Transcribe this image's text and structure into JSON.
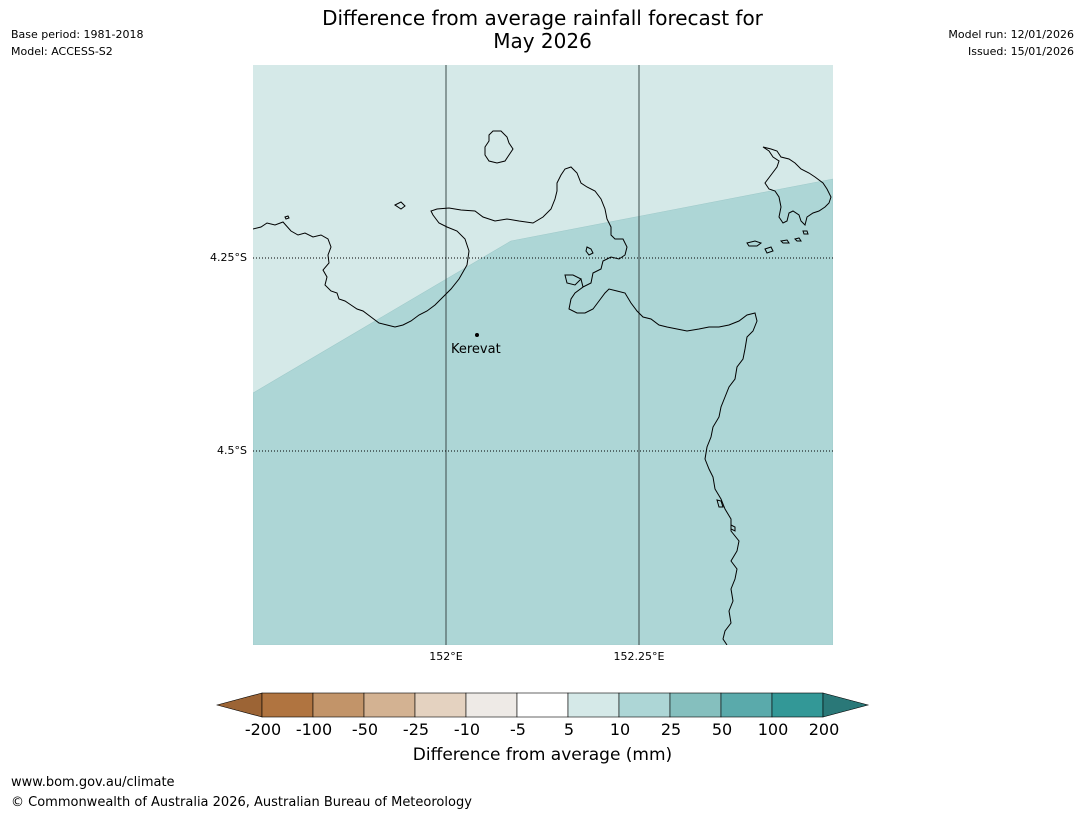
{
  "header": {
    "base_period": "Base period: 1981-2018",
    "model": "Model: ACCESS-S2",
    "model_run": "Model run: 12/01/2026",
    "issued": "Issued: 15/01/2026",
    "title_line1": "Difference from average rainfall forecast for",
    "title_line2": "May 2026"
  },
  "map": {
    "lat_labels": [
      "4.25°S",
      "4.5°S"
    ],
    "lon_labels": [
      "152°E",
      "152.25°E"
    ],
    "place": "Kerevat",
    "background_category": "5 to 10",
    "main_category": "10 to 25",
    "colors": {
      "light": "#d5e9e8",
      "mid": "#add6d6",
      "coast": "#000000",
      "grid": "#3a4a4a"
    }
  },
  "legend": {
    "title": "Difference from average (mm)",
    "ticks": [
      "-200",
      "-100",
      "-50",
      "-25",
      "-10",
      "-5",
      "5",
      "10",
      "25",
      "50",
      "100",
      "200"
    ],
    "colors": [
      "#9c6435",
      "#b07440",
      "#c29469",
      "#d3b292",
      "#e4d2c0",
      "#eeeae6",
      "#ffffff",
      "#d5e9e8",
      "#add6d6",
      "#85bfbe",
      "#5aaaab",
      "#339897",
      "#2a7878"
    ]
  },
  "footer": {
    "url": "www.bom.gov.au/climate",
    "copyright": "© Commonwealth of Australia 2026, Australian Bureau of Meteorology"
  }
}
